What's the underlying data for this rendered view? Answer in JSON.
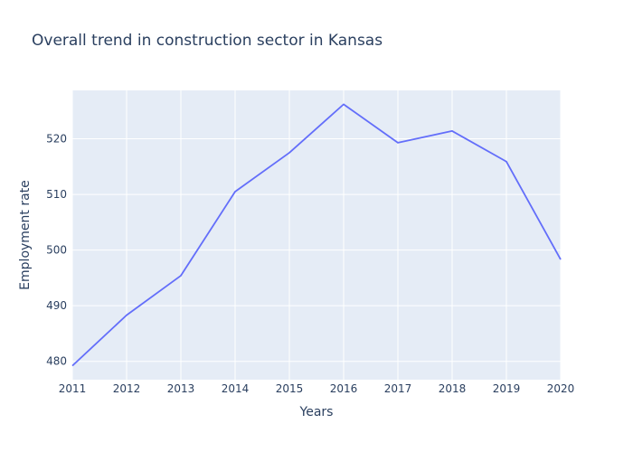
{
  "chart_data": {
    "type": "line",
    "title": "Overall trend in construction sector in Kansas",
    "xlabel": "Years",
    "ylabel": "Employment rate",
    "x": [
      2011,
      2012,
      2013,
      2014,
      2015,
      2016,
      2017,
      2018,
      2019,
      2020
    ],
    "series": [
      {
        "values": [
          479.2,
          488.3,
          495.4,
          510.5,
          517.5,
          526.2,
          519.3,
          521.4,
          515.9,
          498.3
        ]
      }
    ],
    "xlim": [
      2011,
      2020
    ],
    "ylim": [
      476.7,
      528.7
    ],
    "xticks": [
      2011,
      2012,
      2013,
      2014,
      2015,
      2016,
      2017,
      2018,
      2019,
      2020
    ],
    "yticks": [
      480,
      490,
      500,
      510,
      520
    ],
    "grid": true,
    "colors": {
      "plot_background": "#e5ecf6",
      "grid": "#ffffff",
      "line": "#636efa",
      "text": "#2a3f5f"
    }
  }
}
